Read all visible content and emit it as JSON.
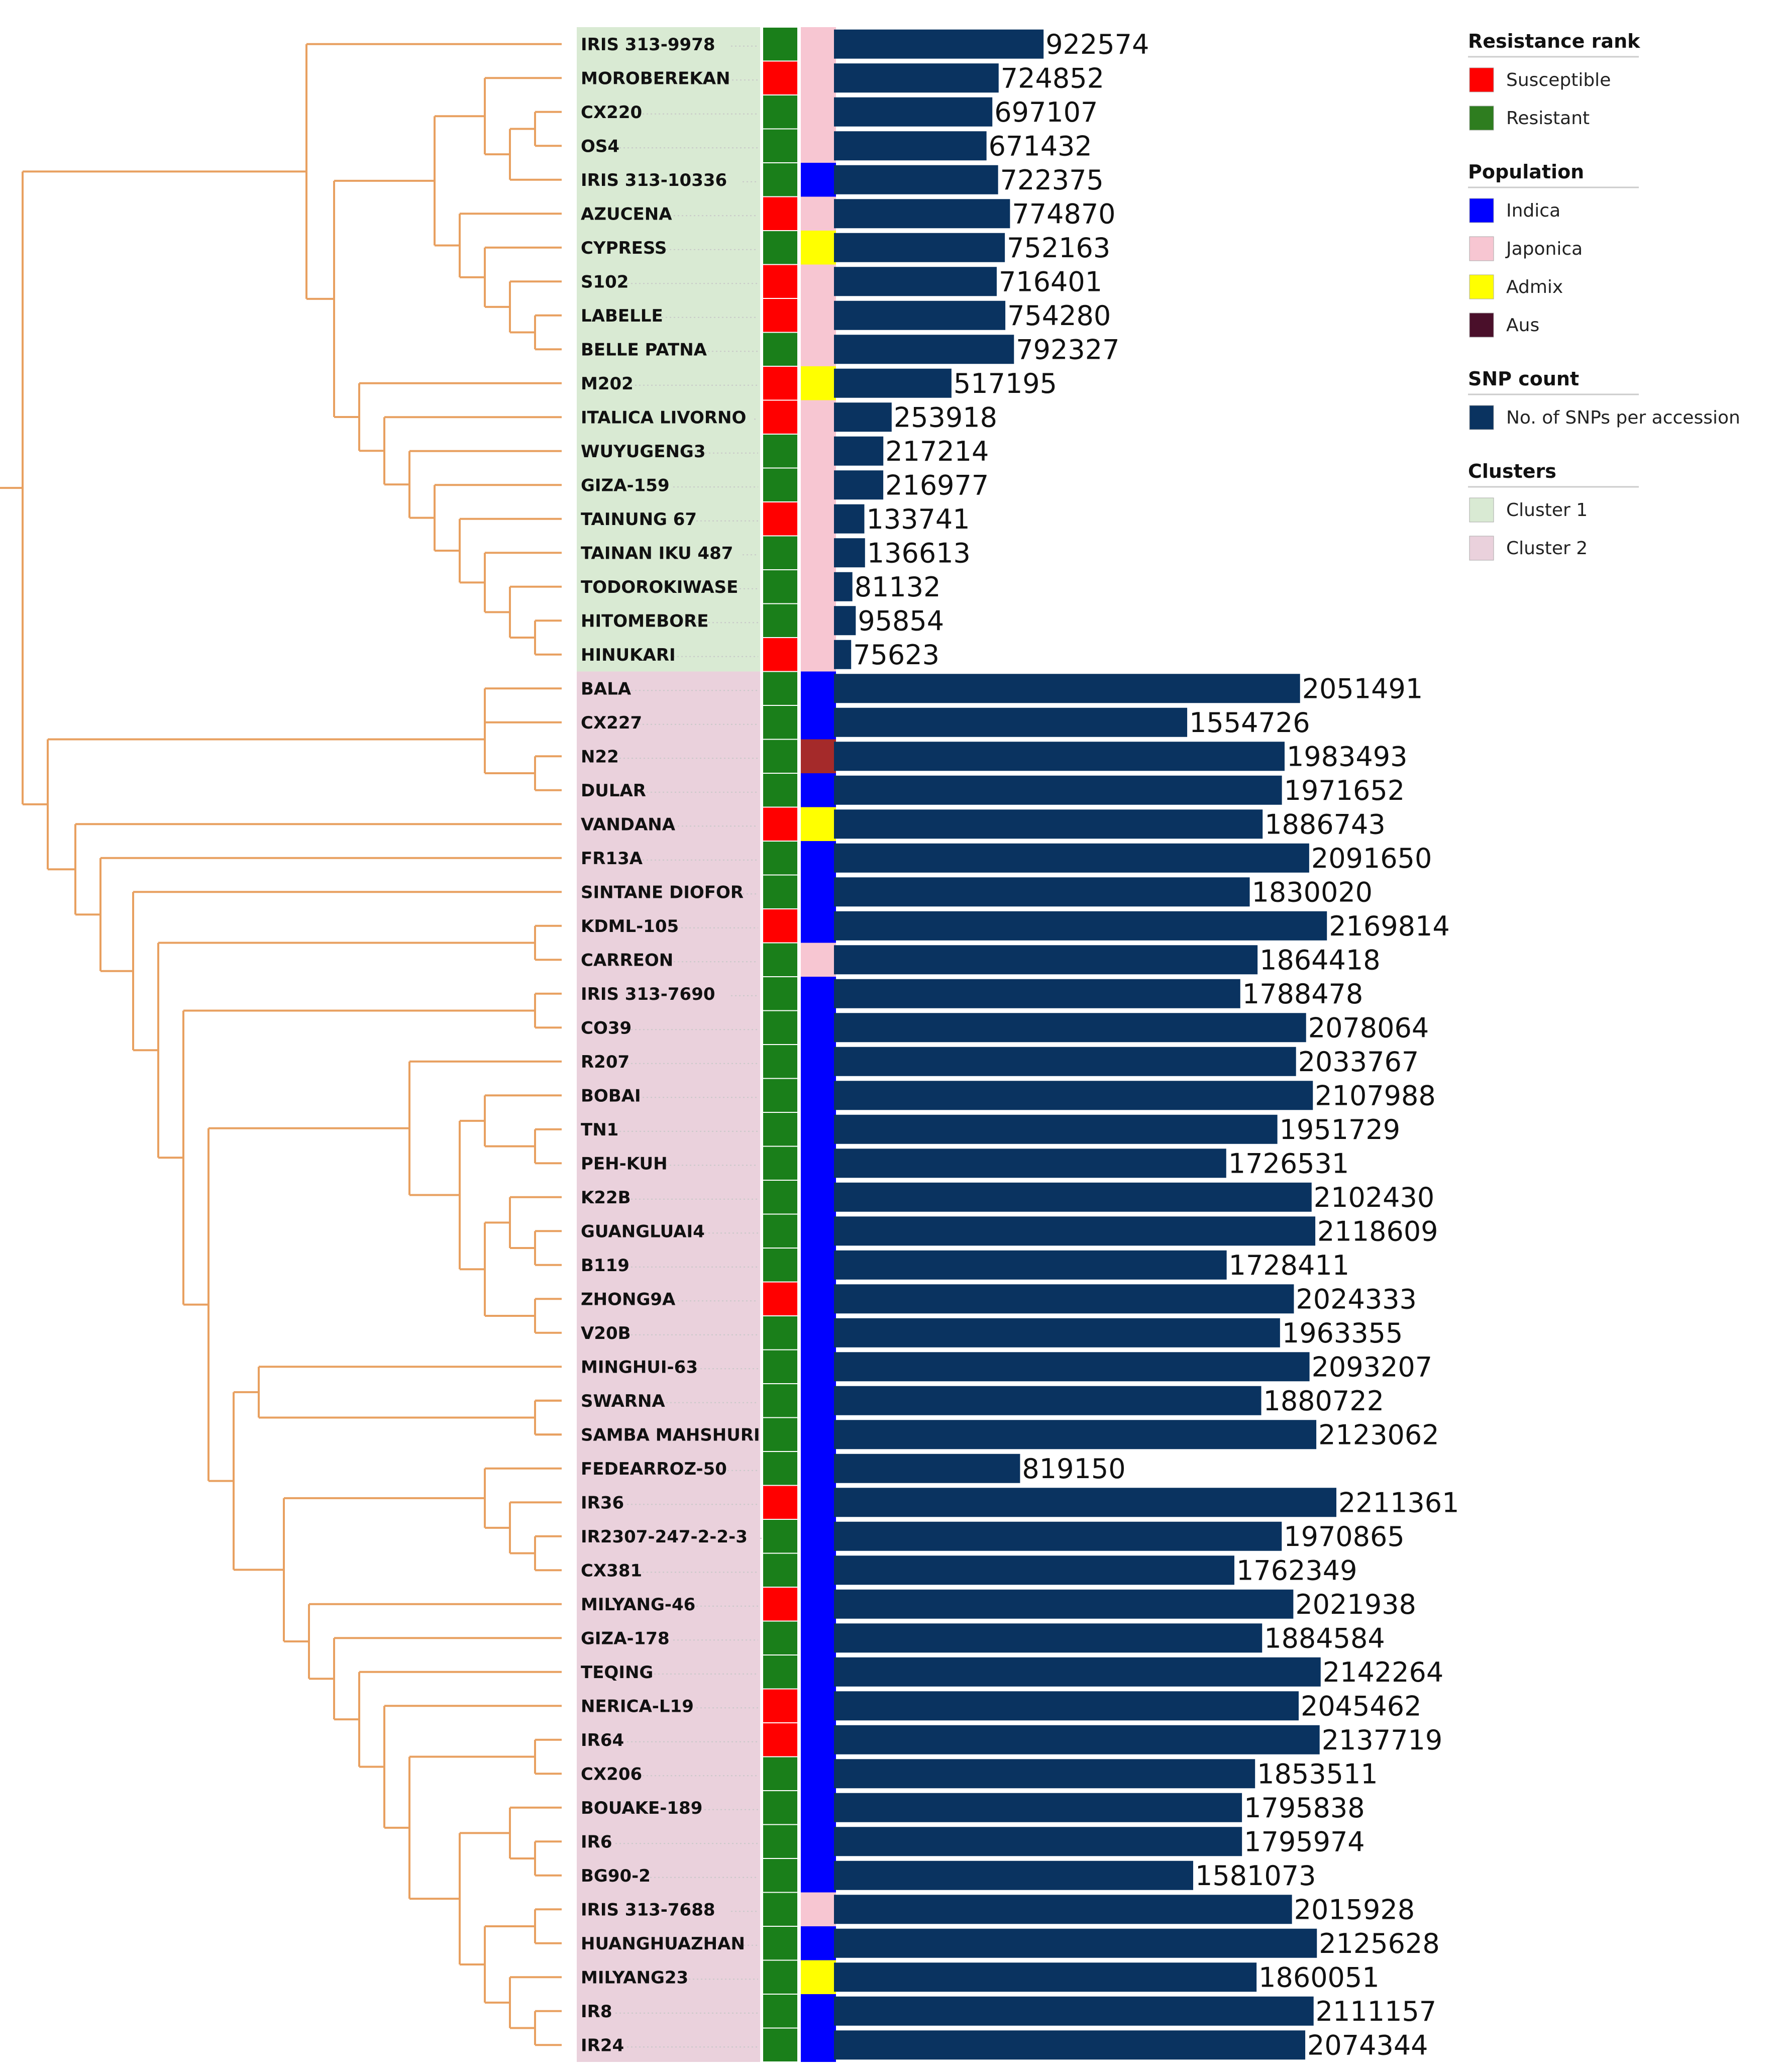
{
  "chart_data": {
    "type": "bar",
    "orientation": "horizontal",
    "xlabel": "",
    "ylabel": "",
    "xlim": [
      0,
      2300000
    ],
    "grid": false,
    "legend_position": "top-right",
    "series_name": "No. of SNPs per accession",
    "accessions": [
      {
        "name": "IRIS 313-9978",
        "snps": 922574,
        "resistance": "Resistant",
        "population": "Japonica",
        "cluster": "Cluster 1"
      },
      {
        "name": "MOROBEREKAN",
        "snps": 724852,
        "resistance": "Susceptible",
        "population": "Japonica",
        "cluster": "Cluster 1"
      },
      {
        "name": "CX220",
        "snps": 697107,
        "resistance": "Resistant",
        "population": "Japonica",
        "cluster": "Cluster 1"
      },
      {
        "name": "OS4",
        "snps": 671432,
        "resistance": "Resistant",
        "population": "Japonica",
        "cluster": "Cluster 1"
      },
      {
        "name": "IRIS 313-10336",
        "snps": 722375,
        "resistance": "Resistant",
        "population": "Indica",
        "cluster": "Cluster 1"
      },
      {
        "name": "AZUCENA",
        "snps": 774870,
        "resistance": "Susceptible",
        "population": "Japonica",
        "cluster": "Cluster 1"
      },
      {
        "name": "CYPRESS",
        "snps": 752163,
        "resistance": "Resistant",
        "population": "Admix",
        "cluster": "Cluster 1"
      },
      {
        "name": "S102",
        "snps": 716401,
        "resistance": "Susceptible",
        "population": "Japonica",
        "cluster": "Cluster 1"
      },
      {
        "name": "LABELLE",
        "snps": 754280,
        "resistance": "Susceptible",
        "population": "Japonica",
        "cluster": "Cluster 1"
      },
      {
        "name": "BELLE PATNA",
        "snps": 792327,
        "resistance": "Resistant",
        "population": "Japonica",
        "cluster": "Cluster 1"
      },
      {
        "name": "M202",
        "snps": 517195,
        "resistance": "Susceptible",
        "population": "Admix",
        "cluster": "Cluster 1"
      },
      {
        "name": "ITALICA LIVORNO",
        "snps": 253918,
        "resistance": "Susceptible",
        "population": "Japonica",
        "cluster": "Cluster 1"
      },
      {
        "name": "WUYUGENG3",
        "snps": 217214,
        "resistance": "Resistant",
        "population": "Japonica",
        "cluster": "Cluster 1"
      },
      {
        "name": "GIZA-159",
        "snps": 216977,
        "resistance": "Resistant",
        "population": "Japonica",
        "cluster": "Cluster 1"
      },
      {
        "name": "TAINUNG 67",
        "snps": 133741,
        "resistance": "Susceptible",
        "population": "Japonica",
        "cluster": "Cluster 1"
      },
      {
        "name": "TAINAN IKU 487",
        "snps": 136613,
        "resistance": "Resistant",
        "population": "Japonica",
        "cluster": "Cluster 1"
      },
      {
        "name": "TODOROKIWASE",
        "snps": 81132,
        "resistance": "Resistant",
        "population": "Japonica",
        "cluster": "Cluster 1"
      },
      {
        "name": "HITOMEBORE",
        "snps": 95854,
        "resistance": "Resistant",
        "population": "Japonica",
        "cluster": "Cluster 1"
      },
      {
        "name": "HINUKARI",
        "snps": 75623,
        "resistance": "Susceptible",
        "population": "Japonica",
        "cluster": "Cluster 1"
      },
      {
        "name": "BALA",
        "snps": 2051491,
        "resistance": "Resistant",
        "population": "Indica",
        "cluster": "Cluster 2"
      },
      {
        "name": "CX227",
        "snps": 1554726,
        "resistance": "Resistant",
        "population": "Indica",
        "cluster": "Cluster 2"
      },
      {
        "name": "N22",
        "snps": 1983493,
        "resistance": "Resistant",
        "population": "Aus",
        "cluster": "Cluster 2"
      },
      {
        "name": "DULAR",
        "snps": 1971652,
        "resistance": "Resistant",
        "population": "Indica",
        "cluster": "Cluster 2"
      },
      {
        "name": "VANDANA",
        "snps": 1886743,
        "resistance": "Susceptible",
        "population": "Admix",
        "cluster": "Cluster 2"
      },
      {
        "name": "FR13A",
        "snps": 2091650,
        "resistance": "Resistant",
        "population": "Indica",
        "cluster": "Cluster 2"
      },
      {
        "name": "SINTANE DIOFOR",
        "snps": 1830020,
        "resistance": "Resistant",
        "population": "Indica",
        "cluster": "Cluster 2"
      },
      {
        "name": "KDML-105",
        "snps": 2169814,
        "resistance": "Susceptible",
        "population": "Indica",
        "cluster": "Cluster 2"
      },
      {
        "name": "CARREON",
        "snps": 1864418,
        "resistance": "Resistant",
        "population": "Japonica",
        "cluster": "Cluster 2"
      },
      {
        "name": "IRIS 313-7690",
        "snps": 1788478,
        "resistance": "Resistant",
        "population": "Indica",
        "cluster": "Cluster 2"
      },
      {
        "name": "CO39",
        "snps": 2078064,
        "resistance": "Resistant",
        "population": "Indica",
        "cluster": "Cluster 2"
      },
      {
        "name": "R207",
        "snps": 2033767,
        "resistance": "Resistant",
        "population": "Indica",
        "cluster": "Cluster 2"
      },
      {
        "name": "BOBAI",
        "snps": 2107988,
        "resistance": "Resistant",
        "population": "Indica",
        "cluster": "Cluster 2"
      },
      {
        "name": "TN1",
        "snps": 1951729,
        "resistance": "Resistant",
        "population": "Indica",
        "cluster": "Cluster 2"
      },
      {
        "name": "PEH-KUH",
        "snps": 1726531,
        "resistance": "Resistant",
        "population": "Indica",
        "cluster": "Cluster 2"
      },
      {
        "name": "K22B",
        "snps": 2102430,
        "resistance": "Resistant",
        "population": "Indica",
        "cluster": "Cluster 2"
      },
      {
        "name": "GUANGLUAI4",
        "snps": 2118609,
        "resistance": "Resistant",
        "population": "Indica",
        "cluster": "Cluster 2"
      },
      {
        "name": "B119",
        "snps": 1728411,
        "resistance": "Resistant",
        "population": "Indica",
        "cluster": "Cluster 2"
      },
      {
        "name": "ZHONG9A",
        "snps": 2024333,
        "resistance": "Susceptible",
        "population": "Indica",
        "cluster": "Cluster 2"
      },
      {
        "name": "V20B",
        "snps": 1963355,
        "resistance": "Resistant",
        "population": "Indica",
        "cluster": "Cluster 2"
      },
      {
        "name": "MINGHUI-63",
        "snps": 2093207,
        "resistance": "Resistant",
        "population": "Indica",
        "cluster": "Cluster 2"
      },
      {
        "name": "SWARNA",
        "snps": 1880722,
        "resistance": "Resistant",
        "population": "Indica",
        "cluster": "Cluster 2"
      },
      {
        "name": "SAMBA MAHSHURI",
        "snps": 2123062,
        "resistance": "Resistant",
        "population": "Indica",
        "cluster": "Cluster 2"
      },
      {
        "name": "FEDEARROZ-50",
        "snps": 819150,
        "resistance": "Resistant",
        "population": "Indica",
        "cluster": "Cluster 2"
      },
      {
        "name": "IR36",
        "snps": 2211361,
        "resistance": "Susceptible",
        "population": "Indica",
        "cluster": "Cluster 2"
      },
      {
        "name": "IR2307-247-2-2-3",
        "snps": 1970865,
        "resistance": "Resistant",
        "population": "Indica",
        "cluster": "Cluster 2"
      },
      {
        "name": "CX381",
        "snps": 1762349,
        "resistance": "Resistant",
        "population": "Indica",
        "cluster": "Cluster 2"
      },
      {
        "name": "MILYANG-46",
        "snps": 2021938,
        "resistance": "Susceptible",
        "population": "Indica",
        "cluster": "Cluster 2"
      },
      {
        "name": "GIZA-178",
        "snps": 1884584,
        "resistance": "Resistant",
        "population": "Indica",
        "cluster": "Cluster 2"
      },
      {
        "name": "TEQING",
        "snps": 2142264,
        "resistance": "Resistant",
        "population": "Indica",
        "cluster": "Cluster 2"
      },
      {
        "name": "NERICA-L19",
        "snps": 2045462,
        "resistance": "Susceptible",
        "population": "Indica",
        "cluster": "Cluster 2"
      },
      {
        "name": "IR64",
        "snps": 2137719,
        "resistance": "Susceptible",
        "population": "Indica",
        "cluster": "Cluster 2"
      },
      {
        "name": "CX206",
        "snps": 1853511,
        "resistance": "Resistant",
        "population": "Indica",
        "cluster": "Cluster 2"
      },
      {
        "name": "BOUAKE-189",
        "snps": 1795838,
        "resistance": "Resistant",
        "population": "Indica",
        "cluster": "Cluster 2"
      },
      {
        "name": "IR6",
        "snps": 1795974,
        "resistance": "Resistant",
        "population": "Indica",
        "cluster": "Cluster 2"
      },
      {
        "name": "BG90-2",
        "snps": 1581073,
        "resistance": "Resistant",
        "population": "Indica",
        "cluster": "Cluster 2"
      },
      {
        "name": "IRIS 313-7688",
        "snps": 2015928,
        "resistance": "Resistant",
        "population": "Japonica",
        "cluster": "Cluster 2"
      },
      {
        "name": "HUANGHUAZHAN",
        "snps": 2125628,
        "resistance": "Resistant",
        "population": "Indica",
        "cluster": "Cluster 2"
      },
      {
        "name": "MILYANG23",
        "snps": 1860051,
        "resistance": "Resistant",
        "population": "Admix",
        "cluster": "Cluster 2"
      },
      {
        "name": "IR8",
        "snps": 2111157,
        "resistance": "Resistant",
        "population": "Indica",
        "cluster": "Cluster 2"
      },
      {
        "name": "IR24",
        "snps": 2074344,
        "resistance": "Resistant",
        "population": "Indica",
        "cluster": "Cluster 2"
      }
    ],
    "legend": [
      {
        "title": "Resistance rank",
        "items": [
          {
            "label": "Susceptible",
            "color": "#ff0000"
          },
          {
            "label": "Resistant",
            "color": "#2e7d1f"
          }
        ]
      },
      {
        "title": "Population",
        "items": [
          {
            "label": "Indica",
            "color": "#0000ff"
          },
          {
            "label": "Japonica",
            "color": "#f7c6d2"
          },
          {
            "label": "Admix",
            "color": "#ffff00"
          },
          {
            "label": "Aus",
            "color": "#4a0f2a"
          }
        ]
      },
      {
        "title": "SNP count",
        "items": [
          {
            "label": "No. of SNPs per accession",
            "color": "#0a3360"
          }
        ]
      },
      {
        "title": "Clusters",
        "items": [
          {
            "label": "Cluster 1",
            "color": "#d9ead3"
          },
          {
            "label": "Cluster 2",
            "color": "#ead1dc"
          }
        ]
      }
    ]
  },
  "colors": {
    "tree_branch": "#e8a060",
    "bar": "#0a3360",
    "susceptible": "#ff0000",
    "resistant": "#1a7f1a",
    "indica": "#0000ff",
    "japonica": "#f7c6d2",
    "admix": "#ffff00",
    "aus_cell": "#a52a2a",
    "aus_legend": "#4a0f2a",
    "cluster1": "#d9ead3",
    "cluster2": "#ead1dc"
  }
}
